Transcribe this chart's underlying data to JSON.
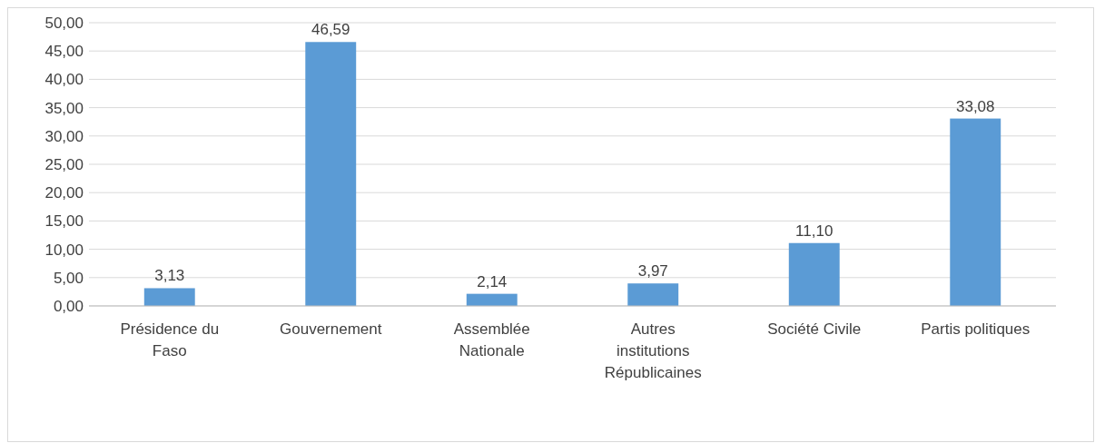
{
  "chart_data": {
    "type": "bar",
    "categories": [
      "Présidence du Faso",
      "Gouvernement",
      "Assemblée Nationale",
      "Autres institutions Républicaines",
      "Société Civile",
      "Partis politiques"
    ],
    "values": [
      3.13,
      46.59,
      2.14,
      3.97,
      11.1,
      33.08
    ],
    "value_labels": [
      "3,13",
      "46,59",
      "2,14",
      "3,97",
      "11,10",
      "33,08"
    ],
    "color": "#5b9bd5",
    "ylim": [
      0,
      50
    ],
    "yticks": [
      {
        "value": 0,
        "label": "0,00"
      },
      {
        "value": 5,
        "label": "5,00"
      },
      {
        "value": 10,
        "label": "10,00"
      },
      {
        "value": 15,
        "label": "15,00"
      },
      {
        "value": 20,
        "label": "20,00"
      },
      {
        "value": 25,
        "label": "25,00"
      },
      {
        "value": 30,
        "label": "30,00"
      },
      {
        "value": 35,
        "label": "35,00"
      },
      {
        "value": 40,
        "label": "40,00"
      },
      {
        "value": 45,
        "label": "45,00"
      },
      {
        "value": 50,
        "label": "50,00"
      }
    ],
    "grid": "y"
  }
}
